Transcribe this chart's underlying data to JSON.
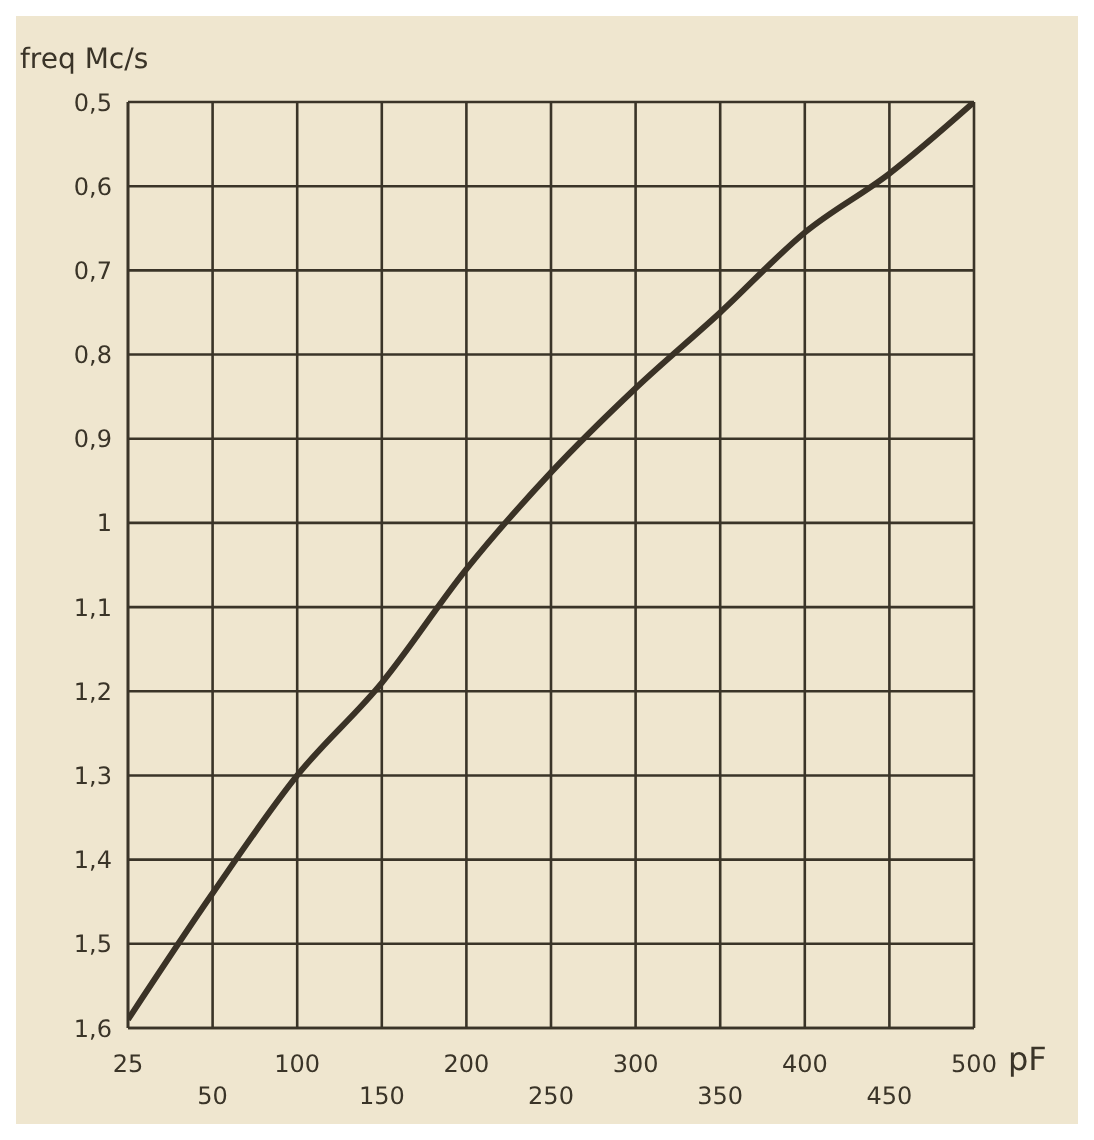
{
  "chart_data": {
    "type": "line",
    "xlabel": "pF",
    "ylabel": "freq Mc/s",
    "categories": [
      "25",
      "50",
      "100",
      "150",
      "200",
      "250",
      "300",
      "350",
      "400",
      "450",
      "500"
    ],
    "series": [
      {
        "color": "#3a3226",
        "values": [
          1.59,
          1.44,
          1.3,
          1.19,
          1.055,
          0.94,
          0.84,
          0.75,
          0.655,
          0.585,
          0.5
        ]
      }
    ],
    "ylim": [
      1.6,
      0.5
    ],
    "yticks": [
      {
        "value": 0.5,
        "label": "0,5"
      },
      {
        "value": 0.6,
        "label": "0,6"
      },
      {
        "value": 0.7,
        "label": "0,7"
      },
      {
        "value": 0.8,
        "label": "0,8"
      },
      {
        "value": 0.9,
        "label": "0,9"
      },
      1,
      {
        "value": 1.1,
        "label": "1,1"
      },
      {
        "value": 1.2,
        "label": "1,2"
      },
      {
        "value": 1.3,
        "label": "1,3"
      },
      {
        "value": 1.4,
        "label": "1,4"
      },
      {
        "value": 1.5,
        "label": "1,5"
      },
      {
        "value": 1.6,
        "label": "1,6"
      }
    ],
    "grid": true,
    "marker": "none",
    "line_style": "solid"
  }
}
